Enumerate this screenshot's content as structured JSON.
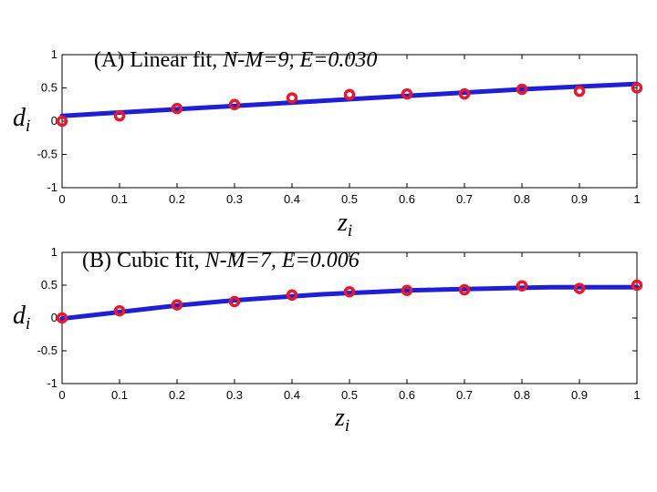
{
  "chart_data": [
    {
      "type": "line",
      "title_prefix": "(A) Linear fit, ",
      "title_italic": "N-M=9, E=0.030",
      "xlabel": "z",
      "xlabel_sub": "i",
      "ylabel": "d",
      "ylabel_sub": "i",
      "xlim": [
        0,
        1
      ],
      "ylim": [
        -1,
        1
      ],
      "xticks": [
        "0",
        "0.1",
        "0.2",
        "0.3",
        "0.4",
        "0.5",
        "0.6",
        "0.7",
        "0.8",
        "0.9",
        "1"
      ],
      "yticks": [
        "1",
        "0.5",
        "0",
        "-0.5",
        "-1"
      ],
      "grid": false,
      "line_color": "#1f1fd6",
      "marker_color": "#e8192c",
      "points": {
        "x": [
          0,
          0.1,
          0.2,
          0.3,
          0.4,
          0.5,
          0.6,
          0.7,
          0.8,
          0.9,
          1.0
        ],
        "y": [
          0.0,
          0.08,
          0.19,
          0.25,
          0.35,
          0.4,
          0.41,
          0.41,
          0.48,
          0.45,
          0.5
        ]
      },
      "fit": {
        "x": [
          0,
          0.1,
          0.2,
          0.3,
          0.4,
          0.5,
          0.6,
          0.7,
          0.8,
          0.9,
          1.0
        ],
        "y": [
          0.08,
          0.13,
          0.18,
          0.23,
          0.28,
          0.33,
          0.38,
          0.43,
          0.48,
          0.52,
          0.56
        ]
      }
    },
    {
      "type": "line",
      "title_prefix": "(B) Cubic fit, ",
      "title_italic": "N-M=7, E=0.006",
      "xlabel": "z",
      "xlabel_sub": "i",
      "ylabel": "d",
      "ylabel_sub": "i",
      "xlim": [
        0,
        1
      ],
      "ylim": [
        -1,
        1
      ],
      "xticks": [
        "0",
        "0.1",
        "0.2",
        "0.3",
        "0.4",
        "0.5",
        "0.6",
        "0.7",
        "0.8",
        "0.9",
        "1"
      ],
      "yticks": [
        "1",
        "0.5",
        "0",
        "-0.5",
        "-1"
      ],
      "grid": false,
      "line_color": "#1f1fd6",
      "marker_color": "#e8192c",
      "points": {
        "x": [
          0,
          0.1,
          0.2,
          0.3,
          0.4,
          0.5,
          0.6,
          0.7,
          0.8,
          0.9,
          1.0
        ],
        "y": [
          0.0,
          0.11,
          0.2,
          0.25,
          0.35,
          0.4,
          0.42,
          0.43,
          0.49,
          0.45,
          0.5
        ]
      },
      "fit": {
        "x": [
          0,
          0.05,
          0.1,
          0.15,
          0.2,
          0.25,
          0.3,
          0.35,
          0.4,
          0.45,
          0.5,
          0.55,
          0.6,
          0.65,
          0.7,
          0.75,
          0.8,
          0.85,
          0.9,
          0.95,
          1.0
        ],
        "y": [
          -0.01,
          0.04,
          0.09,
          0.14,
          0.19,
          0.23,
          0.27,
          0.3,
          0.33,
          0.36,
          0.38,
          0.4,
          0.42,
          0.43,
          0.44,
          0.45,
          0.46,
          0.47,
          0.47,
          0.47,
          0.47
        ]
      }
    }
  ]
}
